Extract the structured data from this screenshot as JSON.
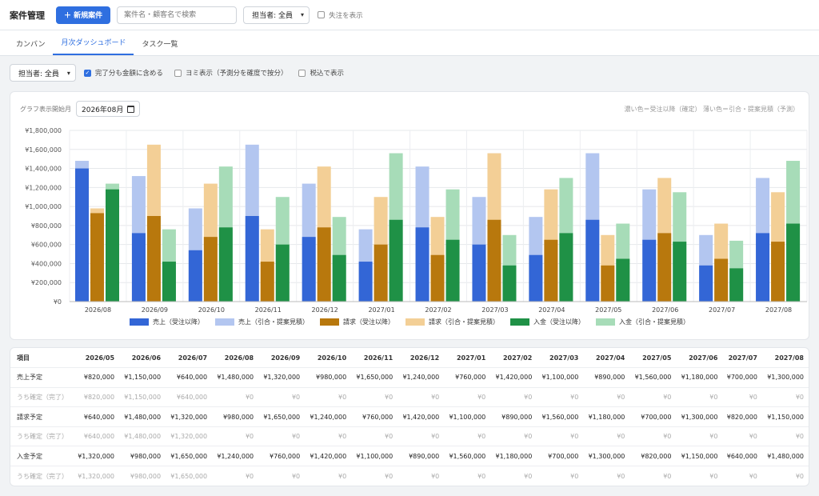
{
  "header": {
    "title": "案件管理",
    "new_button": "＋ 新規案件",
    "search_placeholder": "案件名・顧客名で検索",
    "assignee_select": "担当者: 全員",
    "show_lost_label": "失注を表示"
  },
  "tabs": [
    {
      "label": "カンバン",
      "active": false
    },
    {
      "label": "月次ダッシュボード",
      "active": true
    },
    {
      "label": "タスク一覧",
      "active": false
    }
  ],
  "filters": {
    "assignee_select": "担当者: 全員",
    "include_completed": {
      "label": "完了分も金額に含める",
      "checked": true
    },
    "yomi": {
      "label": "ヨミ表示（予測分を確度で按分）",
      "checked": false
    },
    "tax": {
      "label": "税込で表示",
      "checked": false
    }
  },
  "chart_controls": {
    "start_label": "グラフ表示開始月",
    "start_value": "2026年08月",
    "note": "濃い色＝受注以降（確定） 薄い色＝引合・提案見積（予測）"
  },
  "colors": {
    "sales_dark": "#3366d6",
    "sales_light": "#b3c6f0",
    "bill_dark": "#b8780d",
    "bill_light": "#f3cf96",
    "pay_dark": "#1f9146",
    "pay_light": "#a7dcb8"
  },
  "chart_data": {
    "type": "bar",
    "stacked": "grouped-stacked",
    "categories": [
      "2026/08",
      "2026/09",
      "2026/10",
      "2026/11",
      "2026/12",
      "2027/01",
      "2027/02",
      "2027/03",
      "2027/04",
      "2027/05",
      "2027/06",
      "2027/07",
      "2027/08"
    ],
    "ylim": [
      0,
      1800000
    ],
    "yticks": [
      "¥0",
      "¥200,000",
      "¥400,000",
      "¥600,000",
      "¥800,000",
      "¥1,000,000",
      "¥1,200,000",
      "¥1,400,000",
      "¥1,600,000",
      "¥1,800,000"
    ],
    "groups": [
      {
        "name": "売上",
        "confirmed": [
          1400000,
          720000,
          540000,
          900000,
          680000,
          420000,
          780000,
          600000,
          490000,
          860000,
          650000,
          380000,
          720000
        ],
        "total": [
          1480000,
          1320000,
          980000,
          1650000,
          1240000,
          760000,
          1420000,
          1100000,
          890000,
          1560000,
          1180000,
          700000,
          1300000
        ]
      },
      {
        "name": "請求",
        "confirmed": [
          930000,
          900000,
          680000,
          420000,
          780000,
          600000,
          490000,
          860000,
          650000,
          380000,
          720000,
          450000,
          630000
        ],
        "total": [
          980000,
          1650000,
          1240000,
          760000,
          1420000,
          1100000,
          890000,
          1560000,
          1180000,
          700000,
          1300000,
          820000,
          1150000
        ]
      },
      {
        "name": "入金",
        "confirmed": [
          1180000,
          420000,
          780000,
          600000,
          490000,
          860000,
          650000,
          380000,
          720000,
          450000,
          630000,
          350000,
          820000
        ],
        "total": [
          1240000,
          760000,
          1420000,
          1100000,
          890000,
          1560000,
          1180000,
          700000,
          1300000,
          820000,
          1150000,
          640000,
          1480000
        ]
      }
    ],
    "legend": [
      "売上（受注以降）",
      "売上（引合・提案見積）",
      "請求（受注以降）",
      "請求（引合・提案見積）",
      "入金（受注以降）",
      "入金（引合・提案見積）"
    ],
    "legend_position": "bottom",
    "grid": true
  },
  "table": {
    "headers": [
      "項目",
      "2026/05",
      "2026/06",
      "2026/07",
      "2026/08",
      "2026/09",
      "2026/10",
      "2026/11",
      "2026/12",
      "2027/01",
      "2027/02",
      "2027/03",
      "2027/04",
      "2027/05",
      "2027/06",
      "2027/07",
      "2027/08"
    ],
    "rows": [
      {
        "type": "main",
        "cells": [
          "売上予定",
          "¥820,000",
          "¥1,150,000",
          "¥640,000",
          "¥1,480,000",
          "¥1,320,000",
          "¥980,000",
          "¥1,650,000",
          "¥1,240,000",
          "¥760,000",
          "¥1,420,000",
          "¥1,100,000",
          "¥890,000",
          "¥1,560,000",
          "¥1,180,000",
          "¥700,000",
          "¥1,300,000"
        ]
      },
      {
        "type": "sub",
        "cells": [
          "うち確定（完了）",
          "¥820,000",
          "¥1,150,000",
          "¥640,000",
          "¥0",
          "¥0",
          "¥0",
          "¥0",
          "¥0",
          "¥0",
          "¥0",
          "¥0",
          "¥0",
          "¥0",
          "¥0",
          "¥0",
          "¥0"
        ]
      },
      {
        "type": "main",
        "cells": [
          "請求予定",
          "¥640,000",
          "¥1,480,000",
          "¥1,320,000",
          "¥980,000",
          "¥1,650,000",
          "¥1,240,000",
          "¥760,000",
          "¥1,420,000",
          "¥1,100,000",
          "¥890,000",
          "¥1,560,000",
          "¥1,180,000",
          "¥700,000",
          "¥1,300,000",
          "¥820,000",
          "¥1,150,000"
        ]
      },
      {
        "type": "sub",
        "cells": [
          "うち確定（完了）",
          "¥640,000",
          "¥1,480,000",
          "¥1,320,000",
          "¥0",
          "¥0",
          "¥0",
          "¥0",
          "¥0",
          "¥0",
          "¥0",
          "¥0",
          "¥0",
          "¥0",
          "¥0",
          "¥0",
          "¥0"
        ]
      },
      {
        "type": "main",
        "cells": [
          "入金予定",
          "¥1,320,000",
          "¥980,000",
          "¥1,650,000",
          "¥1,240,000",
          "¥760,000",
          "¥1,420,000",
          "¥1,100,000",
          "¥890,000",
          "¥1,560,000",
          "¥1,180,000",
          "¥700,000",
          "¥1,300,000",
          "¥820,000",
          "¥1,150,000",
          "¥640,000",
          "¥1,480,000"
        ]
      },
      {
        "type": "sub",
        "cells": [
          "うち確定（完了）",
          "¥1,320,000",
          "¥980,000",
          "¥1,650,000",
          "¥0",
          "¥0",
          "¥0",
          "¥0",
          "¥0",
          "¥0",
          "¥0",
          "¥0",
          "¥0",
          "¥0",
          "¥0",
          "¥0",
          "¥0"
        ]
      }
    ]
  }
}
